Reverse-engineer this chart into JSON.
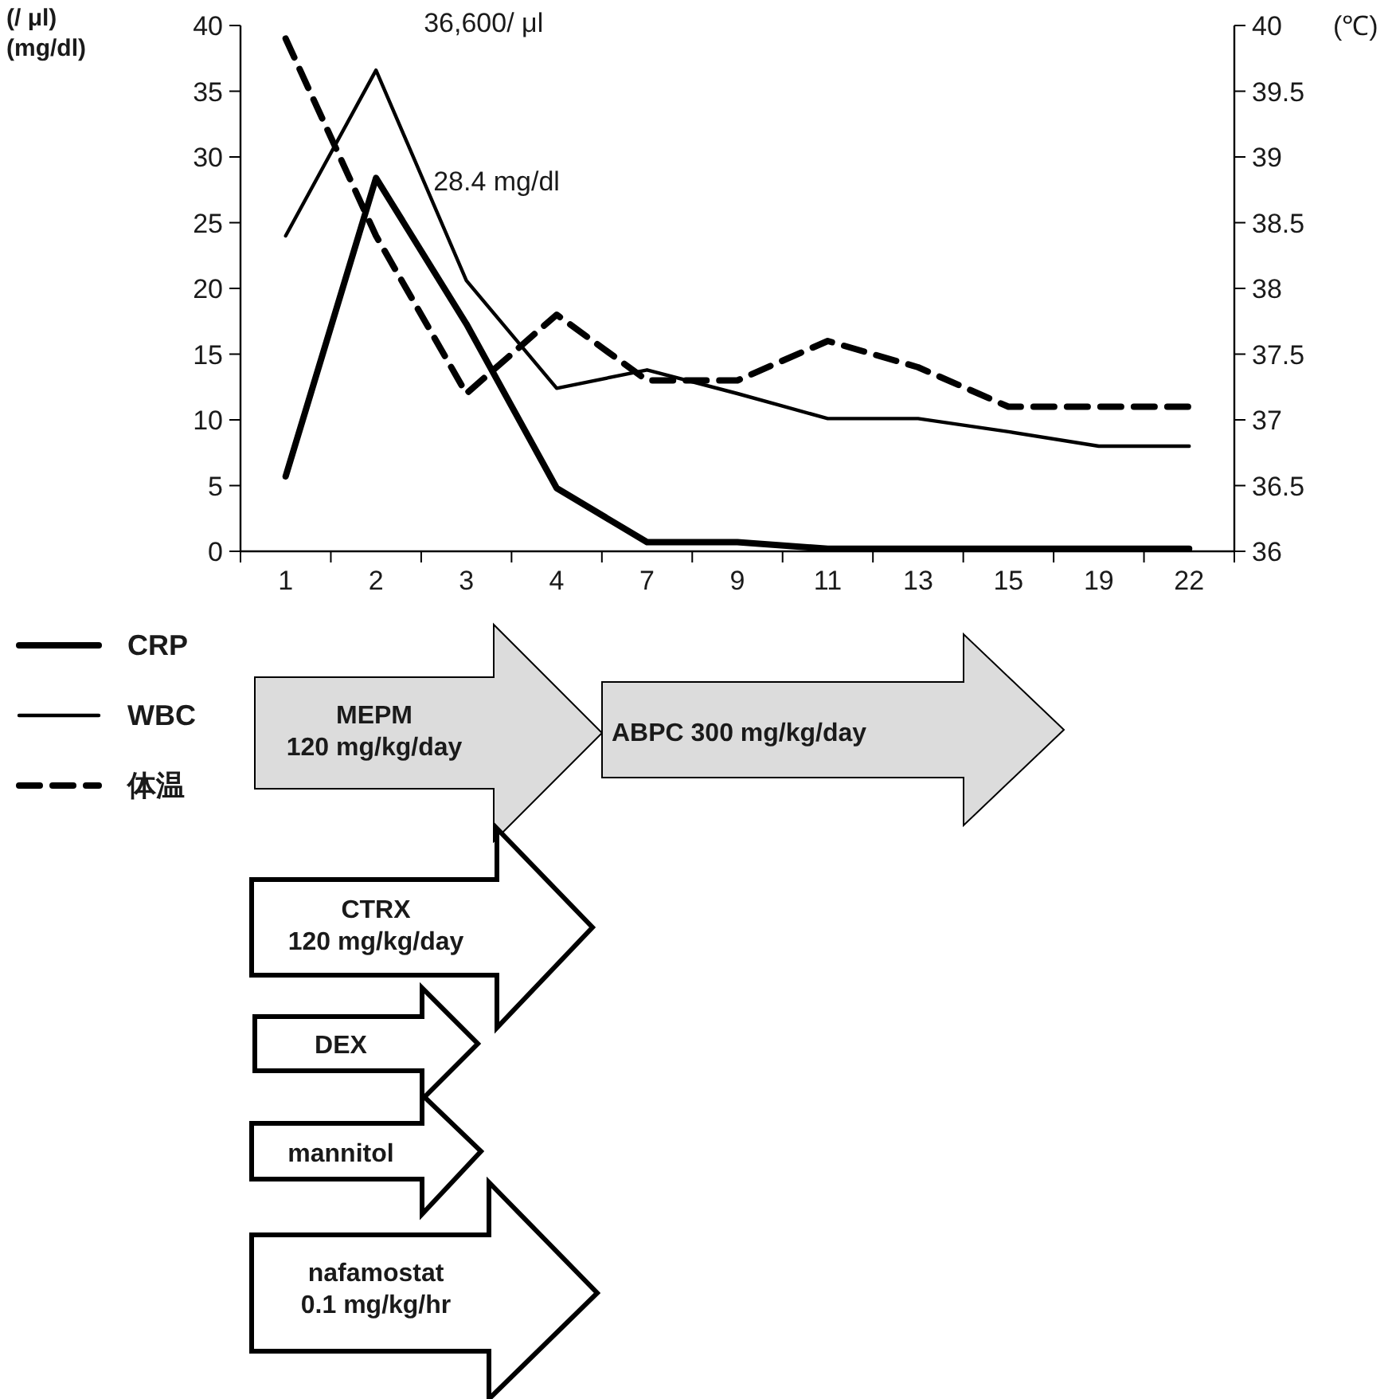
{
  "chart_data": {
    "type": "line",
    "ylabel": "(/ μl)\n(mg/dl)",
    "y2label": "(℃)",
    "categories": [
      "1",
      "2",
      "3",
      "4",
      "7",
      "9",
      "11",
      "13",
      "15",
      "19",
      "22"
    ],
    "series": [
      {
        "name": "CRP",
        "color": "#000000",
        "line_style": "solid",
        "values": [
          5.7,
          28.4,
          17.3,
          4.8,
          0.7,
          0.7,
          0.2,
          0.2,
          0.2,
          0.2,
          0.2
        ]
      },
      {
        "name": "WBC",
        "color": "#000000",
        "line_style": "solid",
        "values": [
          24,
          36.6,
          20.6,
          12.4,
          13.8,
          12,
          10.1,
          10.1,
          9.1,
          8,
          8
        ]
      },
      {
        "name": "体温",
        "color": "#000000",
        "line_style": "dashed",
        "axis": "y2",
        "values": [
          39.9,
          38.4,
          37.2,
          37.8,
          37.3,
          37.3,
          37.6,
          37.4,
          37.1,
          37.1,
          37.1
        ]
      }
    ],
    "ylim": [
      0,
      40
    ],
    "yticks": [
      0,
      5,
      10,
      15,
      20,
      25,
      30,
      35,
      40
    ],
    "y2lim": [
      36,
      40
    ],
    "y2ticks": [
      36,
      36.5,
      37,
      37.5,
      38,
      38.5,
      39,
      39.5,
      40
    ],
    "legend": "bottom left",
    "marker": "none",
    "annotations": [
      {
        "text": "36,600/ μl",
        "x": "2",
        "y": 36.6
      },
      {
        "text": "28.4 mg/dl",
        "x": "2",
        "y": 28.4
      },
      "MEPM\n120 mg/kg/day",
      "ABPC  300 mg/kg/day",
      "CTRX\n120 mg/kg/day",
      "DEX",
      "mannitol",
      "nafamostat\n0.1 mg/kg/hr"
    ]
  }
}
